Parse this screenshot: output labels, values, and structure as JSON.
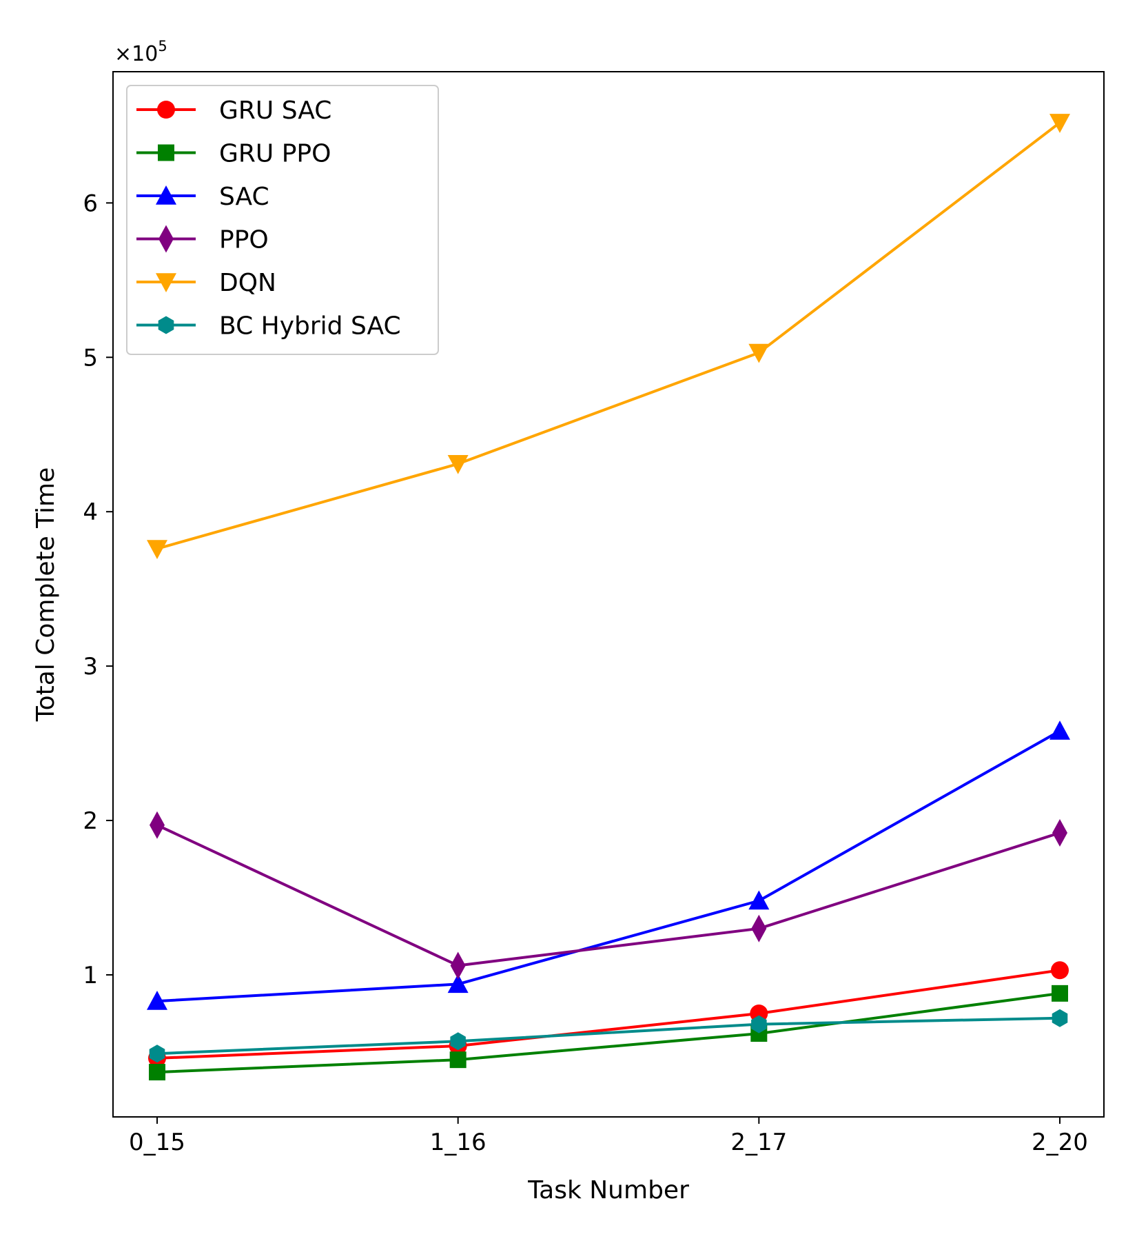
{
  "chart_data": {
    "type": "line",
    "title": "",
    "xlabel": "Task Number",
    "ylabel": "Total Complete Time",
    "y_multiplier_label": "×10",
    "y_multiplier_exponent": "5",
    "categories": [
      "0_15",
      "1_16",
      "2_17",
      "2_20"
    ],
    "ylim": [
      0.08,
      6.85
    ],
    "yticks": [
      1,
      2,
      3,
      4,
      5,
      6
    ],
    "ytick_labels": [
      "1",
      "2",
      "3",
      "4",
      "5",
      "6"
    ],
    "grid": false,
    "legend_position": "top-left",
    "series": [
      {
        "name": "GRU SAC",
        "color": "#ff0000",
        "marker": "circle",
        "values": [
          0.46,
          0.54,
          0.75,
          1.03
        ]
      },
      {
        "name": "GRU PPO",
        "color": "#008000",
        "marker": "square",
        "values": [
          0.37,
          0.45,
          0.62,
          0.88
        ]
      },
      {
        "name": "SAC",
        "color": "#0000ff",
        "marker": "triangle-up",
        "values": [
          0.83,
          0.94,
          1.48,
          2.58
        ]
      },
      {
        "name": "PPO",
        "color": "#800080",
        "marker": "diamond",
        "values": [
          1.97,
          1.06,
          1.3,
          1.92
        ]
      },
      {
        "name": "DQN",
        "color": "#ffa500",
        "marker": "triangle-down",
        "values": [
          3.76,
          4.31,
          5.03,
          6.52
        ]
      },
      {
        "name": "BC Hybrid SAC",
        "color": "#008b8b",
        "marker": "hexagon",
        "values": [
          0.49,
          0.57,
          0.68,
          0.72
        ]
      }
    ]
  }
}
